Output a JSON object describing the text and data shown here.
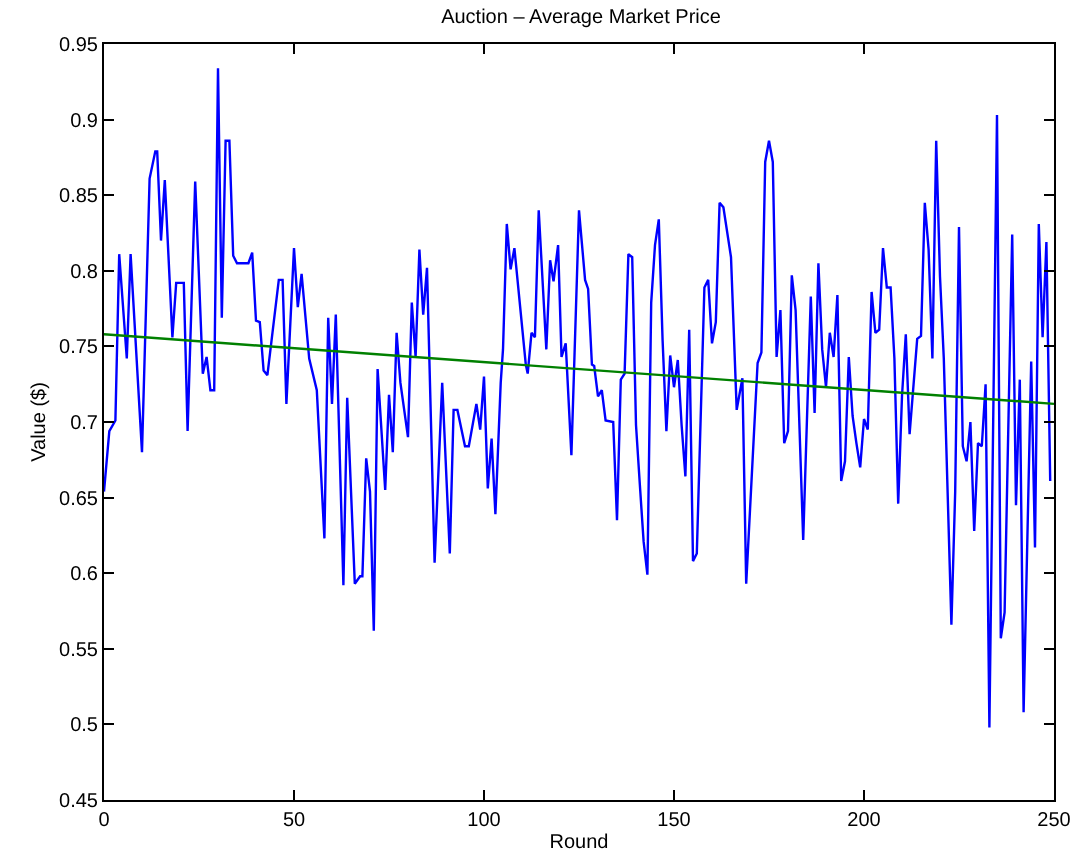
{
  "chart_data": {
    "type": "line",
    "title": "Auction – Average Market Price",
    "xlabel": "Round",
    "ylabel": "Value ($)",
    "xlim": [
      0,
      250
    ],
    "xticks": [
      0,
      50,
      100,
      150,
      200,
      250
    ],
    "ylim": [
      0.45,
      0.95
    ],
    "yticks": [
      0.45,
      0.5,
      0.55,
      0.6,
      0.65,
      0.7,
      0.75,
      0.8,
      0.85,
      0.9,
      0.95
    ],
    "grid": false,
    "marker": "none",
    "line_style": "solid",
    "series": [
      {
        "color": "#0000ff",
        "x": [
          0,
          1.4,
          3,
          4,
          6,
          7,
          10,
          12,
          13.5,
          14,
          15,
          16,
          18,
          19,
          21,
          22,
          24,
          26,
          27,
          28,
          29,
          30,
          31,
          32,
          33,
          34,
          35,
          38,
          39,
          40,
          41,
          42,
          43,
          46,
          47,
          48,
          50,
          51,
          52,
          54,
          56,
          58,
          59,
          60,
          61,
          63,
          64,
          66,
          67.4,
          68,
          69,
          70,
          71,
          72,
          74,
          75,
          76,
          77,
          78,
          80,
          81,
          82,
          83,
          84,
          85,
          87,
          89,
          91,
          92,
          93,
          95,
          96,
          98,
          99,
          100,
          101,
          102,
          103,
          104.4,
          105,
          106,
          107,
          108,
          111,
          111.5,
          112.5,
          113.4,
          114.4,
          116.4,
          117.4,
          118.3,
          119.5,
          120.4,
          121.5,
          123,
          125,
          126.6,
          127.4,
          128.4,
          129,
          130,
          131,
          132,
          134,
          135,
          136,
          137,
          138,
          139,
          140,
          141,
          142,
          143,
          144,
          145,
          146,
          147,
          148,
          149,
          150,
          151,
          152,
          153,
          154,
          155,
          156,
          158,
          159,
          160,
          161,
          162,
          163,
          165,
          166.5,
          168,
          169,
          172,
          173,
          174,
          175,
          176,
          177,
          178,
          179,
          180,
          181,
          182,
          184,
          186,
          187,
          188,
          189,
          190,
          191,
          192,
          193,
          194,
          195,
          196,
          197,
          198,
          199,
          200,
          201,
          202,
          203,
          204,
          205,
          206,
          207,
          208,
          209,
          210,
          211,
          212,
          214,
          215,
          216,
          217,
          218,
          219,
          220,
          221,
          223,
          224,
          225,
          226,
          227,
          228,
          229,
          230,
          231,
          232,
          233,
          235,
          236,
          237,
          239,
          240,
          241,
          242,
          244,
          245,
          246,
          247,
          248,
          249
        ],
        "values": [
          0.654,
          0.694,
          0.701,
          0.811,
          0.742,
          0.811,
          0.68,
          0.861,
          0.879,
          0.879,
          0.82,
          0.86,
          0.756,
          0.792,
          0.792,
          0.694,
          0.859,
          0.732,
          0.743,
          0.721,
          0.721,
          0.934,
          0.769,
          0.886,
          0.886,
          0.81,
          0.805,
          0.805,
          0.812,
          0.767,
          0.766,
          0.734,
          0.731,
          0.794,
          0.794,
          0.712,
          0.815,
          0.776,
          0.798,
          0.742,
          0.721,
          0.623,
          0.769,
          0.712,
          0.771,
          0.592,
          0.716,
          0.593,
          0.598,
          0.598,
          0.676,
          0.654,
          0.562,
          0.735,
          0.655,
          0.718,
          0.68,
          0.759,
          0.726,
          0.69,
          0.779,
          0.743,
          0.814,
          0.771,
          0.802,
          0.607,
          0.726,
          0.613,
          0.708,
          0.708,
          0.684,
          0.684,
          0.712,
          0.695,
          0.73,
          0.656,
          0.689,
          0.639,
          0.726,
          0.748,
          0.831,
          0.801,
          0.815,
          0.738,
          0.732,
          0.759,
          0.756,
          0.84,
          0.748,
          0.807,
          0.793,
          0.817,
          0.743,
          0.752,
          0.678,
          0.84,
          0.794,
          0.788,
          0.738,
          0.737,
          0.717,
          0.721,
          0.701,
          0.7,
          0.635,
          0.728,
          0.732,
          0.811,
          0.809,
          0.698,
          0.659,
          0.621,
          0.599,
          0.779,
          0.817,
          0.834,
          0.754,
          0.694,
          0.744,
          0.723,
          0.741,
          0.698,
          0.664,
          0.761,
          0.608,
          0.613,
          0.789,
          0.794,
          0.752,
          0.766,
          0.845,
          0.842,
          0.809,
          0.708,
          0.729,
          0.593,
          0.739,
          0.746,
          0.872,
          0.886,
          0.872,
          0.743,
          0.774,
          0.686,
          0.694,
          0.797,
          0.774,
          0.622,
          0.783,
          0.706,
          0.805,
          0.748,
          0.723,
          0.759,
          0.743,
          0.784,
          0.661,
          0.674,
          0.743,
          0.704,
          0.686,
          0.67,
          0.702,
          0.695,
          0.786,
          0.759,
          0.761,
          0.815,
          0.789,
          0.789,
          0.742,
          0.646,
          0.717,
          0.758,
          0.692,
          0.755,
          0.757,
          0.845,
          0.814,
          0.742,
          0.886,
          0.796,
          0.742,
          0.566,
          0.654,
          0.829,
          0.684,
          0.674,
          0.7,
          0.628,
          0.686,
          0.684,
          0.725,
          0.498,
          0.903,
          0.557,
          0.574,
          0.824,
          0.645,
          0.728,
          0.508,
          0.74,
          0.617,
          0.831,
          0.756,
          0.819,
          0.661
        ]
      },
      {
        "color": "#008000",
        "x": [
          0,
          250
        ],
        "values": [
          0.758,
          0.712
        ]
      }
    ]
  }
}
